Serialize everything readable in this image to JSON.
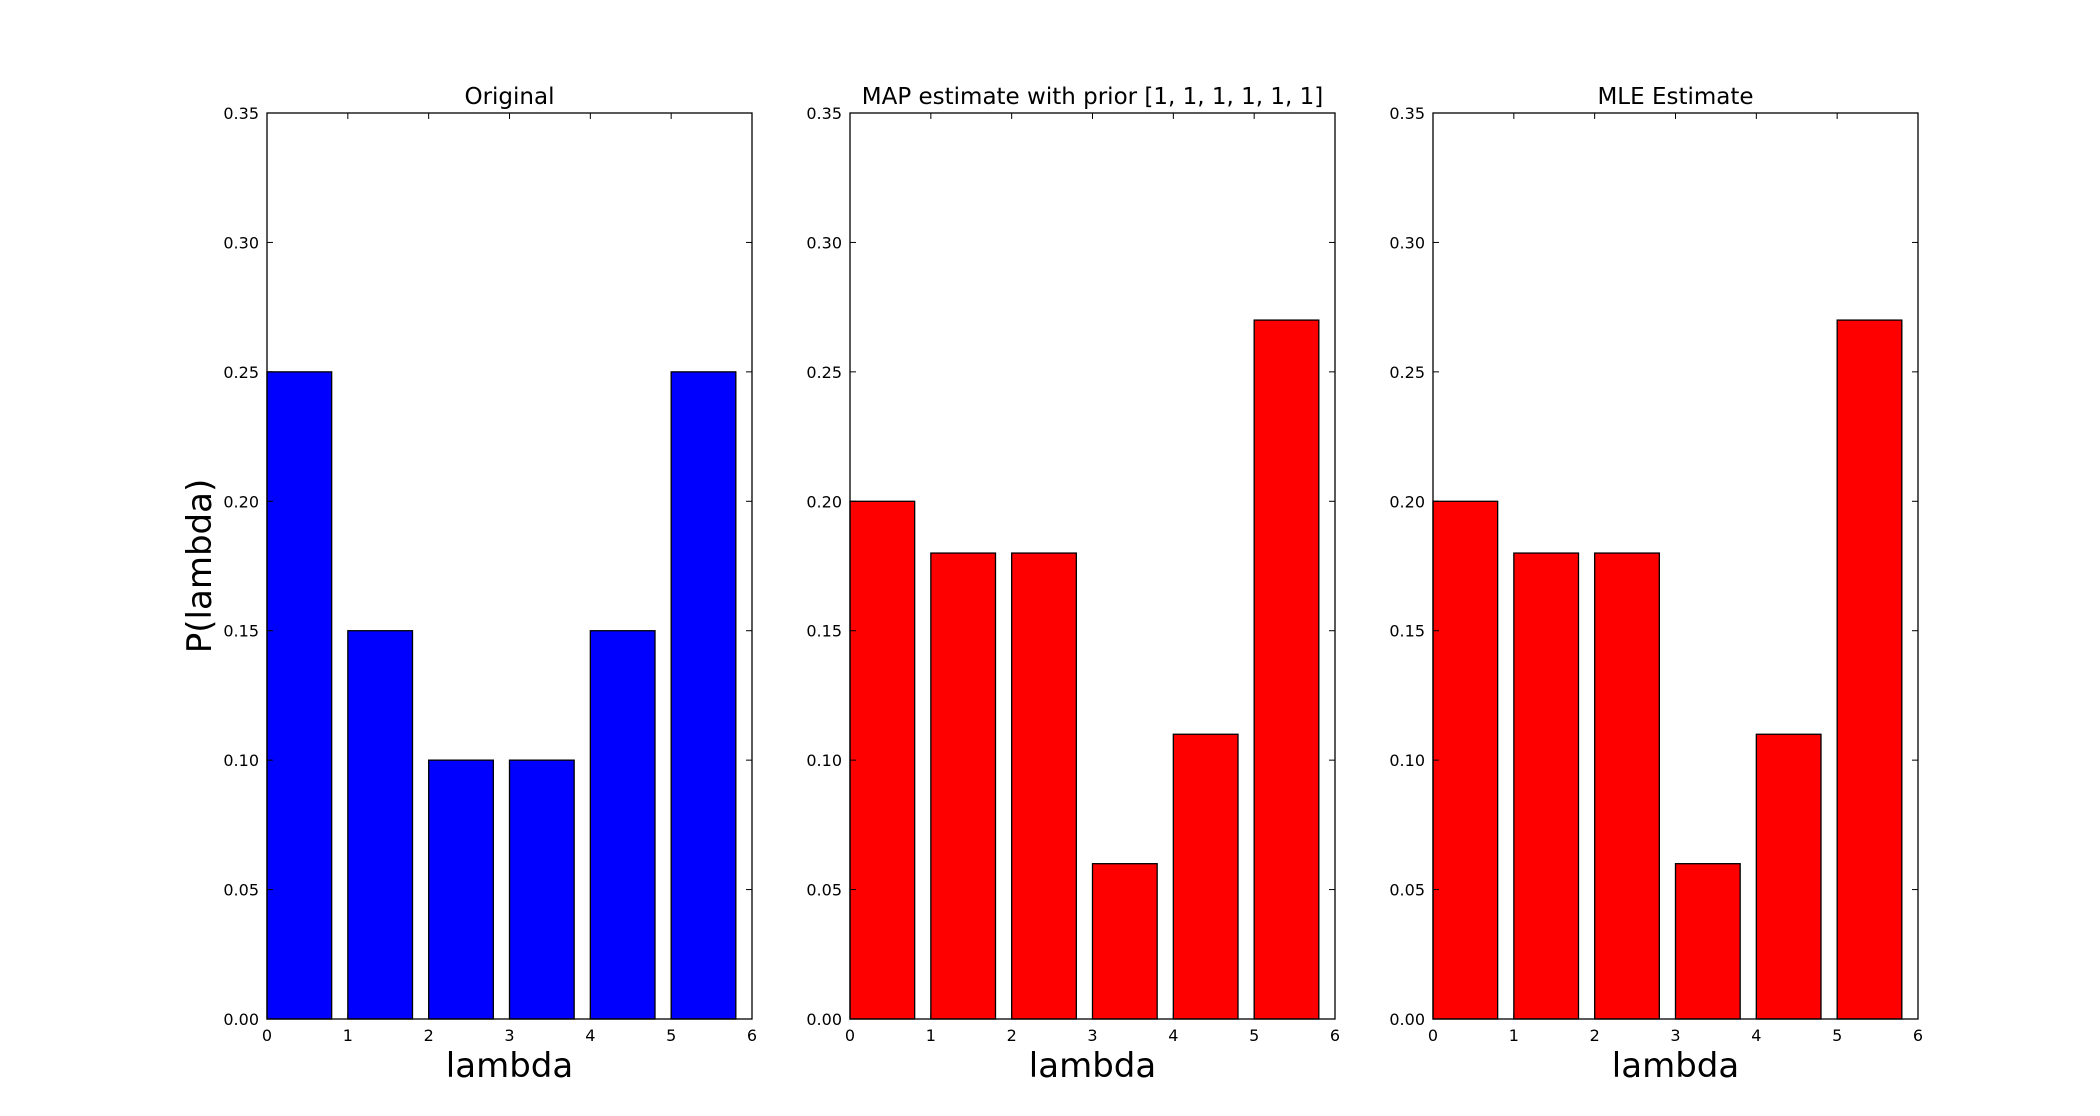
{
  "colors": {
    "original": "#0000ff",
    "estimate": "#ff0000",
    "edge": "#000000",
    "axes": "#000000"
  },
  "chart_data": [
    {
      "type": "bar",
      "title": "Original",
      "xlabel": "lambda",
      "ylabel": "P(lambda)",
      "x": [
        0,
        1,
        2,
        3,
        4,
        5
      ],
      "values": [
        0.25,
        0.15,
        0.1,
        0.1,
        0.15,
        0.25
      ],
      "bar_width": 0.8,
      "xlim": [
        0,
        6
      ],
      "ylim": [
        0,
        0.35
      ],
      "xticks": [
        "0",
        "1",
        "2",
        "3",
        "4",
        "5",
        "6"
      ],
      "yticks": [
        "0.00",
        "0.05",
        "0.10",
        "0.15",
        "0.20",
        "0.25",
        "0.30",
        "0.35"
      ],
      "color": "#0000ff",
      "grid": false
    },
    {
      "type": "bar",
      "title": "MAP estimate with prior [1, 1, 1, 1, 1, 1]",
      "xlabel": "lambda",
      "ylabel": "",
      "x": [
        0,
        1,
        2,
        3,
        4,
        5
      ],
      "values": [
        0.2,
        0.18,
        0.18,
        0.06,
        0.11,
        0.27
      ],
      "bar_width": 0.8,
      "xlim": [
        0,
        6
      ],
      "ylim": [
        0,
        0.35
      ],
      "xticks": [
        "0",
        "1",
        "2",
        "3",
        "4",
        "5",
        "6"
      ],
      "yticks": [
        "0.00",
        "0.05",
        "0.10",
        "0.15",
        "0.20",
        "0.25",
        "0.30",
        "0.35"
      ],
      "color": "#ff0000",
      "grid": false
    },
    {
      "type": "bar",
      "title": "MLE Estimate",
      "xlabel": "lambda",
      "ylabel": "",
      "x": [
        0,
        1,
        2,
        3,
        4,
        5
      ],
      "values": [
        0.2,
        0.18,
        0.18,
        0.06,
        0.11,
        0.27
      ],
      "bar_width": 0.8,
      "xlim": [
        0,
        6
      ],
      "ylim": [
        0,
        0.35
      ],
      "xticks": [
        "0",
        "1",
        "2",
        "3",
        "4",
        "5",
        "6"
      ],
      "yticks": [
        "0.00",
        "0.05",
        "0.10",
        "0.15",
        "0.20",
        "0.25",
        "0.30",
        "0.35"
      ],
      "color": "#ff0000",
      "grid": false
    }
  ]
}
